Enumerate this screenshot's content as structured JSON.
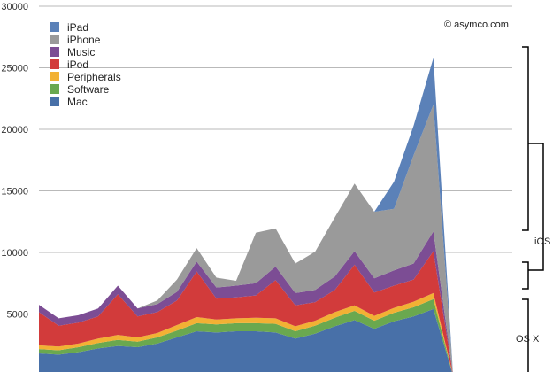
{
  "chart_data": {
    "type": "area",
    "stacked": true,
    "ylim": [
      0,
      30000
    ],
    "yticks": [
      5000,
      10000,
      15000,
      20000,
      25000,
      30000
    ],
    "grid": true,
    "legend_position": "top-left",
    "annotations": {
      "copyright": "© asymco.com",
      "ios_label": "iOS",
      "osx_label": "OS X"
    },
    "colors": {
      "Mac": "#4870a8",
      "Software": "#6aa84f",
      "Peripherals": "#f2b134",
      "iPod": "#d23b3b",
      "Music": "#7c4d94",
      "iPhone": "#9a9a9a",
      "iPad": "#5b81b8"
    },
    "legend": [
      "iPad",
      "iPhone",
      "Music",
      "iPod",
      "Peripherals",
      "Software",
      "Mac"
    ],
    "x": [
      1,
      2,
      3,
      4,
      5,
      6,
      7,
      8,
      9,
      10,
      11,
      12,
      13,
      14,
      15,
      16,
      17,
      18,
      19,
      20,
      21,
      22,
      23,
      24,
      25
    ],
    "series": [
      {
        "name": "Mac",
        "values": [
          1800,
          1700,
          1900,
          2200,
          2400,
          2300,
          2600,
          3100,
          3600,
          3500,
          3600,
          3600,
          3500,
          3000,
          3400,
          4000,
          4500,
          3800,
          4400,
          4800,
          5400,
          0,
          0,
          0,
          0
        ]
      },
      {
        "name": "Software",
        "values": [
          350,
          350,
          400,
          450,
          500,
          450,
          500,
          550,
          650,
          650,
          650,
          650,
          700,
          600,
          650,
          700,
          750,
          650,
          700,
          750,
          800,
          0,
          0,
          0,
          0
        ]
      },
      {
        "name": "Peripherals",
        "values": [
          300,
          300,
          300,
          350,
          400,
          350,
          350,
          450,
          500,
          400,
          400,
          450,
          450,
          400,
          400,
          450,
          450,
          400,
          400,
          450,
          500,
          0,
          0,
          0,
          0
        ]
      },
      {
        "name": "iPod",
        "values": [
          2700,
          1700,
          1700,
          1800,
          3300,
          1700,
          1700,
          2000,
          3700,
          1700,
          1700,
          1800,
          3100,
          1700,
          1500,
          1800,
          3300,
          1900,
          1800,
          1800,
          3400,
          0,
          0,
          0,
          0
        ]
      },
      {
        "name": "Music",
        "values": [
          600,
          600,
          600,
          650,
          700,
          650,
          650,
          700,
          800,
          900,
          950,
          1000,
          1100,
          1000,
          1000,
          1100,
          1100,
          1150,
          1250,
          1300,
          1600,
          0,
          0,
          0,
          0
        ]
      },
      {
        "name": "iPhone",
        "values": [
          0,
          0,
          0,
          0,
          0,
          0,
          300,
          1000,
          1100,
          800,
          400,
          4100,
          3100,
          2400,
          3100,
          4800,
          5500,
          5400,
          5000,
          8800,
          10300,
          0,
          0,
          0,
          0
        ]
      },
      {
        "name": "iPad",
        "values": [
          0,
          0,
          0,
          0,
          0,
          0,
          0,
          0,
          0,
          0,
          0,
          0,
          0,
          0,
          0,
          0,
          0,
          0,
          2200,
          2400,
          3800,
          0,
          0,
          0,
          0
        ]
      }
    ]
  }
}
